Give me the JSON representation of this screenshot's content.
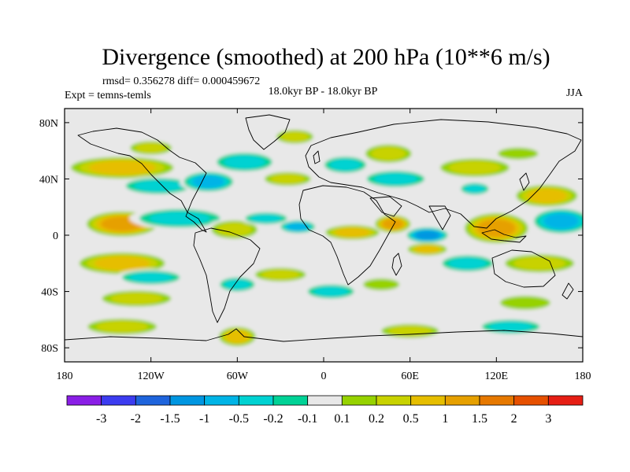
{
  "title": "Divergence (smoothed) at 200 hPa (10**6 m/s)",
  "stats": "rmsd= 0.356278 diff= 0.000459672",
  "expt": "Expt = temns-temls",
  "period": "18.0kyr BP - 18.0kyr BP",
  "season": "JJA",
  "chart_data": {
    "type": "heatmap",
    "projection": "cylindrical-equidistant",
    "xlim": [
      -180,
      180
    ],
    "ylim": [
      -90,
      90
    ],
    "lon_ticks": [
      {
        "value": -180,
        "label": "180"
      },
      {
        "value": -120,
        "label": "120W"
      },
      {
        "value": -60,
        "label": "60W"
      },
      {
        "value": 0,
        "label": "0"
      },
      {
        "value": 60,
        "label": "60E"
      },
      {
        "value": 120,
        "label": "120E"
      },
      {
        "value": 180,
        "label": "180"
      }
    ],
    "lat_ticks": [
      {
        "value": 80,
        "label": "80N"
      },
      {
        "value": 40,
        "label": "40N"
      },
      {
        "value": 0,
        "label": "0"
      },
      {
        "value": -40,
        "label": "40S"
      },
      {
        "value": -80,
        "label": "80S"
      }
    ],
    "colorbar": {
      "colors": [
        "#8a1ee6",
        "#3c3cf0",
        "#1e64dc",
        "#0096e1",
        "#00b4e6",
        "#00d2d2",
        "#00d296",
        "#e8e8e8",
        "#96d200",
        "#c8d200",
        "#e6be00",
        "#e6a000",
        "#e67800",
        "#e65000",
        "#e61e14"
      ],
      "labels": [
        "-3",
        "-2",
        "-1.5",
        "-1",
        "-0.5",
        "-0.2",
        "-0.1",
        "0.1",
        "0.2",
        "0.5",
        "1",
        "1.5",
        "2",
        "3"
      ]
    },
    "regions": [
      {
        "lon": -140,
        "lat": 48,
        "rx": 42,
        "ry": 9,
        "level": 1
      },
      {
        "lon": -120,
        "lat": 62,
        "rx": 18,
        "ry": 6,
        "level": 0.5
      },
      {
        "lon": -115,
        "lat": 35,
        "rx": 28,
        "ry": 7,
        "level": -0.5
      },
      {
        "lon": -80,
        "lat": 38,
        "rx": 20,
        "ry": 8,
        "level": -1
      },
      {
        "lon": -55,
        "lat": 52,
        "rx": 24,
        "ry": 8,
        "level": -0.5
      },
      {
        "lon": -20,
        "lat": 70,
        "rx": 16,
        "ry": 6,
        "level": 0.5
      },
      {
        "lon": -25,
        "lat": 40,
        "rx": 20,
        "ry": 6,
        "level": 0.5
      },
      {
        "lon": 15,
        "lat": 50,
        "rx": 18,
        "ry": 7,
        "level": -0.5
      },
      {
        "lon": 45,
        "lat": 58,
        "rx": 20,
        "ry": 8,
        "level": 0.5
      },
      {
        "lon": 50,
        "lat": 40,
        "rx": 25,
        "ry": 7,
        "level": -0.5
      },
      {
        "lon": 105,
        "lat": 48,
        "rx": 30,
        "ry": 8,
        "level": 0.5
      },
      {
        "lon": 135,
        "lat": 58,
        "rx": 20,
        "ry": 6,
        "level": 0.2
      },
      {
        "lon": 155,
        "lat": 28,
        "rx": 25,
        "ry": 9,
        "level": 1
      },
      {
        "lon": 105,
        "lat": 33,
        "rx": 12,
        "ry": 5,
        "level": -0.5
      },
      {
        "lon": -140,
        "lat": 8,
        "rx": 28,
        "ry": 10,
        "level": 1.5
      },
      {
        "lon": -100,
        "lat": 12,
        "rx": 35,
        "ry": 8,
        "level": -0.5
      },
      {
        "lon": -62,
        "lat": 4,
        "rx": 20,
        "ry": 8,
        "level": 0.5
      },
      {
        "lon": -40,
        "lat": 12,
        "rx": 18,
        "ry": 5,
        "level": -0.5
      },
      {
        "lon": -18,
        "lat": 6,
        "rx": 14,
        "ry": 5,
        "level": -1
      },
      {
        "lon": 20,
        "lat": 2,
        "rx": 22,
        "ry": 6,
        "level": 1
      },
      {
        "lon": 48,
        "lat": 8,
        "rx": 14,
        "ry": 7,
        "level": 1.5
      },
      {
        "lon": 72,
        "lat": 0,
        "rx": 16,
        "ry": 6,
        "level": -1.5
      },
      {
        "lon": 72,
        "lat": -10,
        "rx": 16,
        "ry": 5,
        "level": 1
      },
      {
        "lon": 120,
        "lat": 5,
        "rx": 25,
        "ry": 12,
        "level": 1.5
      },
      {
        "lon": 165,
        "lat": 10,
        "rx": 22,
        "ry": 10,
        "level": -1
      },
      {
        "lon": 150,
        "lat": -20,
        "rx": 30,
        "ry": 8,
        "level": 0.5
      },
      {
        "lon": 100,
        "lat": -20,
        "rx": 22,
        "ry": 7,
        "level": -0.5
      },
      {
        "lon": -140,
        "lat": -20,
        "rx": 35,
        "ry": 9,
        "level": 1
      },
      {
        "lon": -120,
        "lat": -30,
        "rx": 25,
        "ry": 6,
        "level": -0.5
      },
      {
        "lon": -130,
        "lat": -45,
        "rx": 30,
        "ry": 7,
        "level": 0.5
      },
      {
        "lon": -60,
        "lat": -35,
        "rx": 15,
        "ry": 6,
        "level": -0.5
      },
      {
        "lon": -30,
        "lat": -28,
        "rx": 22,
        "ry": 6,
        "level": 0.5
      },
      {
        "lon": 5,
        "lat": -40,
        "rx": 20,
        "ry": 6,
        "level": -0.5
      },
      {
        "lon": 40,
        "lat": -35,
        "rx": 18,
        "ry": 6,
        "level": 0.2
      },
      {
        "lon": 140,
        "lat": -48,
        "rx": 25,
        "ry": 7,
        "level": 0.2
      },
      {
        "lon": -140,
        "lat": -65,
        "rx": 30,
        "ry": 7,
        "level": 0.5
      },
      {
        "lon": -60,
        "lat": -72,
        "rx": 15,
        "ry": 8,
        "level": 1
      },
      {
        "lon": 60,
        "lat": -68,
        "rx": 25,
        "ry": 6,
        "level": 0.5
      },
      {
        "lon": 130,
        "lat": -65,
        "rx": 25,
        "ry": 6,
        "level": -0.5
      }
    ]
  }
}
